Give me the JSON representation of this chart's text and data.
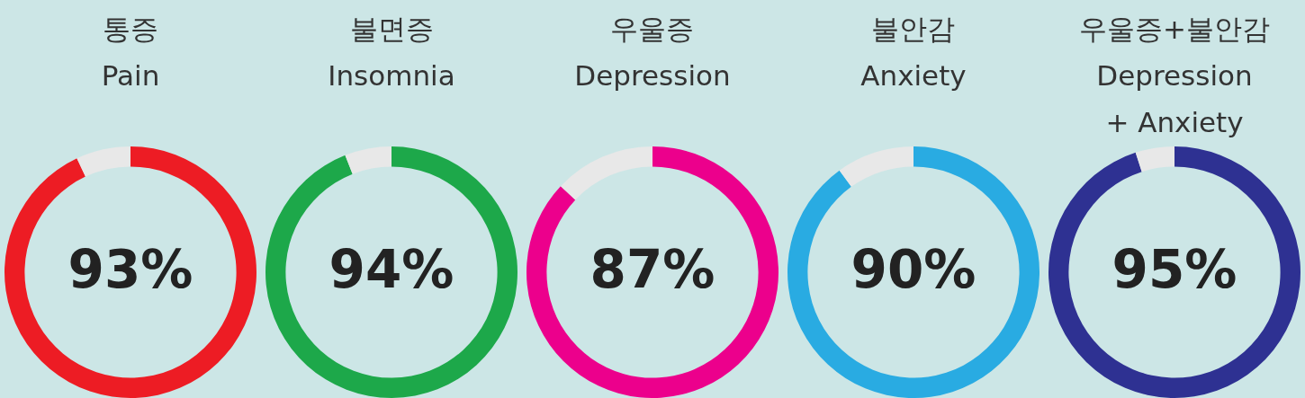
{
  "chart_data": [
    {
      "type": "donut",
      "title": "통증\nPain",
      "categories": [
        null,
        null
      ],
      "values": [
        93,
        7
      ],
      "colors": [
        "#ed1c24",
        "#e8e8e8"
      ],
      "value_labels": [
        "93%",
        null
      ]
    },
    {
      "type": "donut",
      "title": "불면증\nInsomnia",
      "categories": [
        null,
        null
      ],
      "values": [
        94,
        6
      ],
      "colors": [
        "#1da84a",
        "#e8e8e8"
      ],
      "value_labels": [
        "94%",
        null
      ]
    },
    {
      "type": "donut",
      "title": "우울증\nDepression",
      "categories": [
        null,
        null
      ],
      "values": [
        87,
        13
      ],
      "colors": [
        "#ec008c",
        "#e8e8e8"
      ],
      "value_labels": [
        "87%",
        null
      ]
    },
    {
      "type": "donut",
      "title": "불안감\nAnxiety",
      "categories": [
        null,
        null
      ],
      "values": [
        90,
        10
      ],
      "colors": [
        "#29abe2",
        "#e8e8e8"
      ],
      "value_labels": [
        "90%",
        null
      ]
    },
    {
      "type": "donut",
      "title": "우울증+불안감\nDepression\n+ Anxiety",
      "categories": [
        null,
        null
      ],
      "values": [
        95,
        5
      ],
      "colors": [
        "#2e3192",
        "#e8e8e8"
      ],
      "value_labels": [
        "95%",
        null
      ]
    }
  ]
}
